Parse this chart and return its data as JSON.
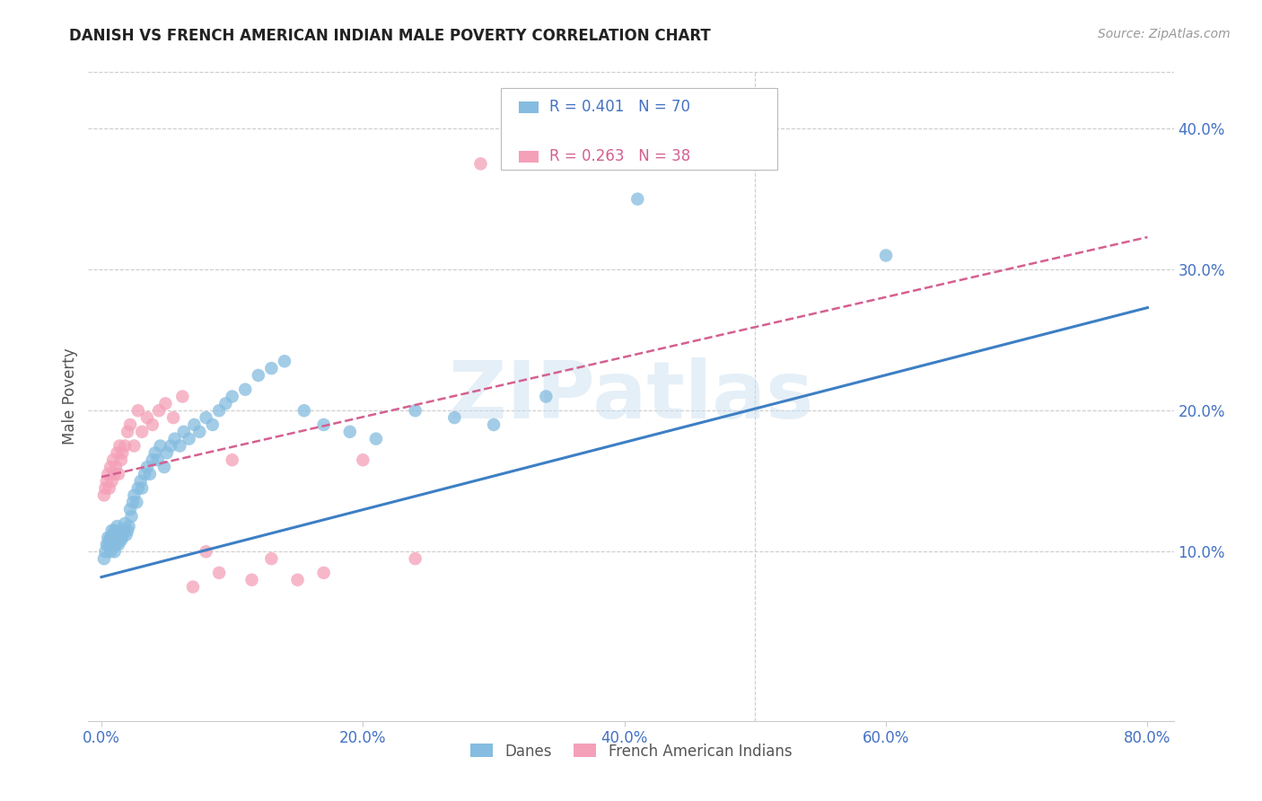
{
  "title": "DANISH VS FRENCH AMERICAN INDIAN MALE POVERTY CORRELATION CHART",
  "source": "Source: ZipAtlas.com",
  "xlabel_ticks": [
    "0.0%",
    "20.0%",
    "40.0%",
    "60.0%",
    "80.0%"
  ],
  "xlabel_vals": [
    0.0,
    0.2,
    0.4,
    0.6,
    0.8
  ],
  "ylabel_ticks": [
    "10.0%",
    "20.0%",
    "30.0%",
    "40.0%"
  ],
  "ylabel_vals": [
    0.1,
    0.2,
    0.3,
    0.4
  ],
  "xlim": [
    -0.01,
    0.82
  ],
  "ylim": [
    -0.02,
    0.44
  ],
  "ylabel": "Male Poverty",
  "legend_r_blue": "R = 0.401",
  "legend_n_blue": "N = 70",
  "legend_r_pink": "R = 0.263",
  "legend_n_pink": "N = 38",
  "legend_label_blue": "Danes",
  "legend_label_pink": "French American Indians",
  "blue_scatter_color": "#85bce0",
  "pink_scatter_color": "#f4a0b8",
  "blue_line_color": "#3d7fc4",
  "pink_line_color": "#d46090",
  "axis_tick_color": "#4472C4",
  "title_color": "#222222",
  "source_color": "#999999",
  "ylabel_color": "#555555",
  "watermark": "ZIPatlas",
  "grid_color": "#cccccc",
  "blue_line_start_y": 0.082,
  "blue_line_end_y": 0.273,
  "pink_line_start_y": 0.153,
  "pink_line_end_y": 0.323,
  "danes_x": [
    0.002,
    0.003,
    0.004,
    0.005,
    0.005,
    0.006,
    0.007,
    0.007,
    0.008,
    0.008,
    0.009,
    0.01,
    0.01,
    0.011,
    0.011,
    0.012,
    0.013,
    0.013,
    0.014,
    0.015,
    0.015,
    0.016,
    0.017,
    0.018,
    0.019,
    0.02,
    0.021,
    0.022,
    0.023,
    0.024,
    0.025,
    0.027,
    0.028,
    0.03,
    0.031,
    0.033,
    0.035,
    0.037,
    0.039,
    0.041,
    0.043,
    0.045,
    0.048,
    0.05,
    0.053,
    0.056,
    0.06,
    0.063,
    0.067,
    0.071,
    0.075,
    0.08,
    0.085,
    0.09,
    0.095,
    0.1,
    0.11,
    0.12,
    0.13,
    0.14,
    0.155,
    0.17,
    0.19,
    0.21,
    0.24,
    0.27,
    0.3,
    0.34,
    0.41,
    0.6
  ],
  "danes_y": [
    0.095,
    0.1,
    0.105,
    0.105,
    0.11,
    0.108,
    0.11,
    0.1,
    0.115,
    0.108,
    0.112,
    0.1,
    0.115,
    0.105,
    0.11,
    0.118,
    0.112,
    0.105,
    0.11,
    0.115,
    0.108,
    0.11,
    0.115,
    0.12,
    0.112,
    0.115,
    0.118,
    0.13,
    0.125,
    0.135,
    0.14,
    0.135,
    0.145,
    0.15,
    0.145,
    0.155,
    0.16,
    0.155,
    0.165,
    0.17,
    0.165,
    0.175,
    0.16,
    0.17,
    0.175,
    0.18,
    0.175,
    0.185,
    0.18,
    0.19,
    0.185,
    0.195,
    0.19,
    0.2,
    0.205,
    0.21,
    0.215,
    0.225,
    0.23,
    0.235,
    0.2,
    0.19,
    0.185,
    0.18,
    0.2,
    0.195,
    0.19,
    0.21,
    0.35,
    0.31
  ],
  "french_x": [
    0.002,
    0.003,
    0.004,
    0.005,
    0.006,
    0.007,
    0.008,
    0.009,
    0.01,
    0.011,
    0.012,
    0.013,
    0.014,
    0.015,
    0.016,
    0.018,
    0.02,
    0.022,
    0.025,
    0.028,
    0.031,
    0.035,
    0.039,
    0.044,
    0.049,
    0.055,
    0.062,
    0.07,
    0.08,
    0.09,
    0.1,
    0.115,
    0.13,
    0.15,
    0.17,
    0.2,
    0.24,
    0.29
  ],
  "french_y": [
    0.14,
    0.145,
    0.15,
    0.155,
    0.145,
    0.16,
    0.15,
    0.165,
    0.155,
    0.16,
    0.17,
    0.155,
    0.175,
    0.165,
    0.17,
    0.175,
    0.185,
    0.19,
    0.175,
    0.2,
    0.185,
    0.195,
    0.19,
    0.2,
    0.205,
    0.195,
    0.21,
    0.075,
    0.1,
    0.085,
    0.165,
    0.08,
    0.095,
    0.08,
    0.085,
    0.165,
    0.095,
    0.375
  ]
}
